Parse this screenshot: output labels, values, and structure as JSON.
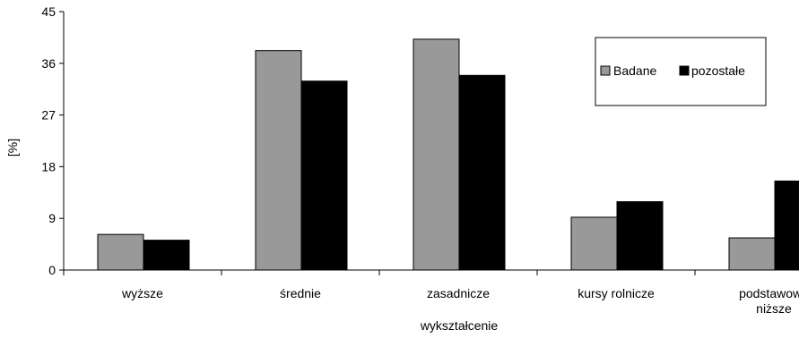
{
  "chart_data": {
    "type": "bar",
    "title": "",
    "xlabel": "wykształcenie",
    "ylabel": "[%]",
    "ylim": [
      0,
      45
    ],
    "yticks": [
      "0",
      "9",
      "18",
      "27",
      "36",
      "45"
    ],
    "categories": [
      [
        "wyższe"
      ],
      [
        "średnie"
      ],
      [
        "zasadnicze"
      ],
      [
        "kursy rolnicze"
      ],
      [
        "podstawowe",
        "niższe"
      ]
    ],
    "series": [
      {
        "name": "Badane",
        "values": [
          6.2,
          38.2,
          40.2,
          9.2,
          5.6
        ],
        "color": "#999999"
      },
      {
        "name": "pozostałe",
        "values": [
          5.2,
          32.9,
          33.9,
          11.9,
          15.5
        ],
        "color": "#000000"
      }
    ],
    "grid": false,
    "legend": "top-right"
  }
}
